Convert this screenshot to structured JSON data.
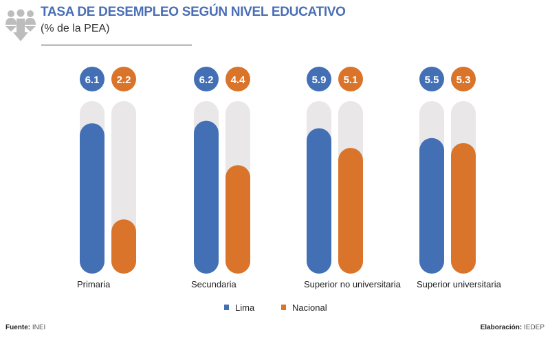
{
  "header": {
    "title": "TASA DE DESEMPLEO SEGÚN NIVEL EDUCATIVO",
    "subtitle": "(% de la PEA)"
  },
  "chart_data": {
    "type": "bar",
    "title": "TASA DE DESEMPLEO SEGÚN NIVEL EDUCATIVO",
    "subtitle": "(% de la PEA)",
    "categories": [
      "Primaria",
      "Secundaria",
      "Superior no universitaria",
      "Superior universitaria"
    ],
    "series": [
      {
        "name": "Lima",
        "color": "#436fb5",
        "values": [
          6.1,
          6.2,
          5.9,
          5.5
        ],
        "labels": [
          "6.1",
          "6.2",
          "5.9",
          "5.5"
        ]
      },
      {
        "name": "Nacional",
        "color": "#d9742a",
        "values": [
          2.2,
          4.4,
          5.1,
          5.3
        ],
        "labels": [
          "2.2",
          "4.4",
          "5.1",
          "5.3"
        ]
      }
    ],
    "ylim": [
      0,
      7
    ],
    "grid": false,
    "legend": "bottom-center",
    "track_color": "#e9e7e8"
  },
  "footer": {
    "source_label": "Fuente:",
    "source": "INEI",
    "credit_label": "Elaboración:",
    "credit": "IEDEP"
  }
}
